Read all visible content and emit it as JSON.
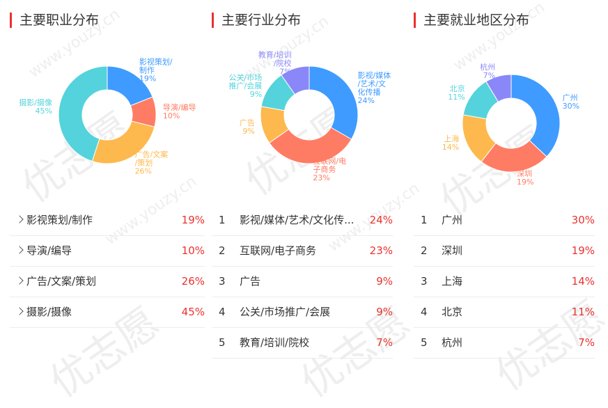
{
  "watermark": {
    "big": "优志愿",
    "small": "www.youzy.cn"
  },
  "colors": {
    "accent": "#e8322e",
    "blue": "#3f9bff",
    "salmon": "#ff7c64",
    "orange": "#fdb94d",
    "cyan": "#54d3dc",
    "purple": "#8a87f8"
  },
  "panels": [
    {
      "title": "主要职业分布",
      "list_style": "chevron",
      "items": [
        {
          "label": "影视策划/制作",
          "pct": "19%"
        },
        {
          "label": "导演/编导",
          "pct": "10%"
        },
        {
          "label": "广告/文案/策划",
          "pct": "26%"
        },
        {
          "label": "摄影/摄像",
          "pct": "45%"
        }
      ]
    },
    {
      "title": "主要行业分布",
      "list_style": "numbered",
      "items": [
        {
          "index": "1",
          "label": "影视/媒体/艺术/文化传...",
          "pct": "24%"
        },
        {
          "index": "2",
          "label": "互联网/电子商务",
          "pct": "23%"
        },
        {
          "index": "3",
          "label": "广告",
          "pct": "9%"
        },
        {
          "index": "4",
          "label": "公关/市场推广/会展",
          "pct": "9%"
        },
        {
          "index": "5",
          "label": "教育/培训/院校",
          "pct": "7%"
        }
      ]
    },
    {
      "title": "主要就业地区分布",
      "list_style": "numbered",
      "items": [
        {
          "index": "1",
          "label": "广州",
          "pct": "30%"
        },
        {
          "index": "2",
          "label": "深圳",
          "pct": "19%"
        },
        {
          "index": "3",
          "label": "上海",
          "pct": "14%"
        },
        {
          "index": "4",
          "label": "北京",
          "pct": "11%"
        },
        {
          "index": "5",
          "label": "杭州",
          "pct": "7%"
        }
      ]
    }
  ],
  "chart_data": [
    {
      "type": "pie",
      "variant": "donut",
      "slices": [
        {
          "label": "影视策划/制作",
          "value": 19,
          "color": "#3f9bff",
          "label_lines": [
            "影视策划/",
            "制作",
            "19%"
          ]
        },
        {
          "label": "导演/编导",
          "value": 10,
          "color": "#ff7c64",
          "label_lines": [
            "导演/编导",
            "10%"
          ]
        },
        {
          "label": "广告/文案/策划",
          "value": 26,
          "color": "#fdb94d",
          "label_lines": [
            "广告/文案",
            "/策划",
            "26%"
          ]
        },
        {
          "label": "摄影/摄像",
          "value": 45,
          "color": "#54d3dc",
          "label_lines": [
            "摄影/摄像",
            "45%"
          ]
        }
      ]
    },
    {
      "type": "pie",
      "variant": "donut",
      "slices": [
        {
          "label": "影视/媒体/艺术/文化传播",
          "value": 24,
          "color": "#3f9bff",
          "label_lines": [
            "影视/媒体",
            "/艺术/文",
            "化传播",
            "24%"
          ]
        },
        {
          "label": "互联网/电子商务",
          "value": 23,
          "color": "#ff7c64",
          "label_lines": [
            "互联网/电",
            "子商务",
            "23%"
          ]
        },
        {
          "label": "广告",
          "value": 9,
          "color": "#fdb94d",
          "label_lines": [
            "广告",
            "9%"
          ]
        },
        {
          "label": "公关/市场推广/会展",
          "value": 9,
          "color": "#54d3dc",
          "label_lines": [
            "公关/市场",
            "推广/会展",
            "9%"
          ]
        },
        {
          "label": "教育/培训/院校",
          "value": 7,
          "color": "#8a87f8",
          "label_lines": [
            "教育/培训",
            "/院校",
            "7%"
          ]
        }
      ]
    },
    {
      "type": "pie",
      "variant": "donut",
      "slices": [
        {
          "label": "广州",
          "value": 30,
          "color": "#3f9bff",
          "label_lines": [
            "广州",
            "30%"
          ]
        },
        {
          "label": "深圳",
          "value": 19,
          "color": "#ff7c64",
          "label_lines": [
            "深圳",
            "19%"
          ]
        },
        {
          "label": "上海",
          "value": 14,
          "color": "#fdb94d",
          "label_lines": [
            "上海",
            "14%"
          ]
        },
        {
          "label": "北京",
          "value": 11,
          "color": "#54d3dc",
          "label_lines": [
            "北京",
            "11%"
          ]
        },
        {
          "label": "杭州",
          "value": 7,
          "color": "#8a87f8",
          "label_lines": [
            "杭州",
            "7%"
          ]
        }
      ]
    }
  ]
}
